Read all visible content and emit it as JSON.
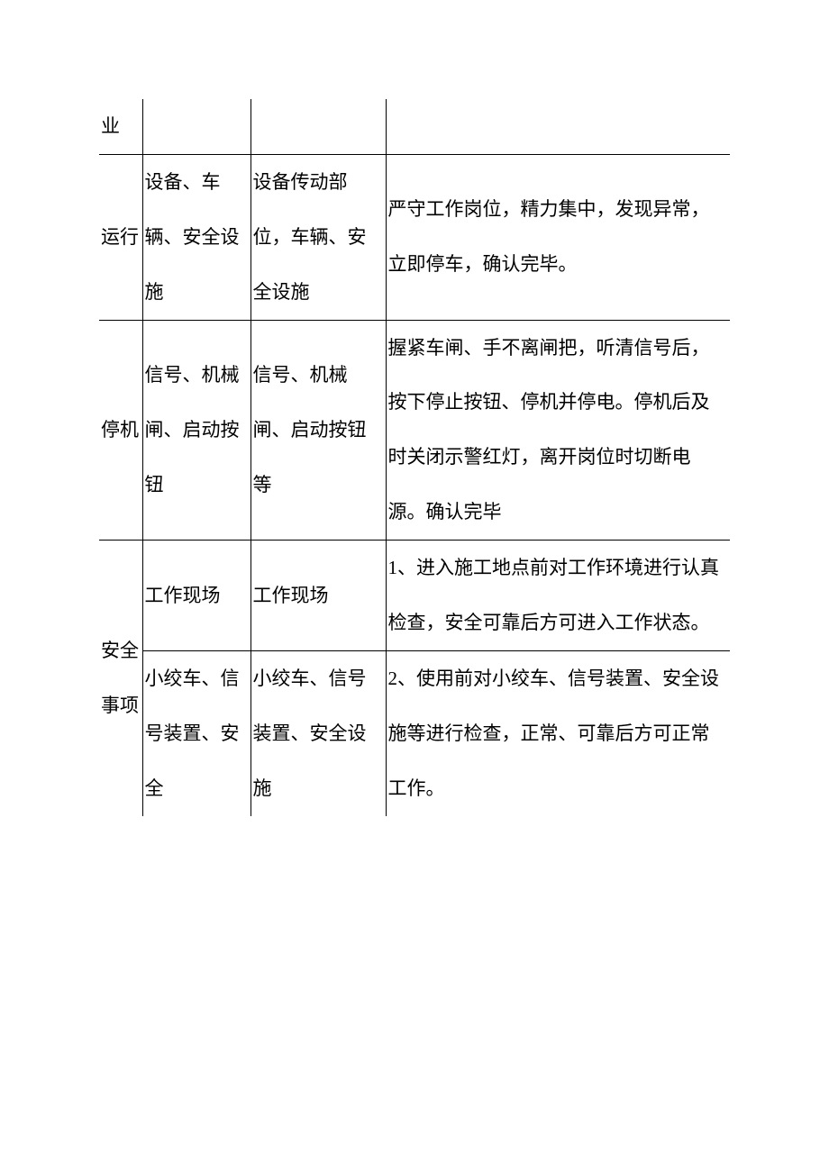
{
  "table": {
    "colors": {
      "border": "#000000",
      "text": "#000000",
      "background": "#ffffff"
    },
    "font_size_pt": 16,
    "line_height": 2.9,
    "rows": [
      {
        "c1": "业",
        "c2": "",
        "c3": "",
        "c4": ""
      },
      {
        "c1": "运行",
        "c2": "设备、车辆、安全设施",
        "c3": "设备传动部位，车辆、安全设施",
        "c4": "严守工作岗位，精力集中，发现异常，立即停车，确认完毕。"
      },
      {
        "c1": "停机",
        "c2": "信号、机械闸、启动按钮",
        "c3": "信号、机械闸、启动按钮等",
        "c4": "握紧车闸、手不离闸把，听清信号后，按下停止按钮、停机并停电。停机后及时关闭示警红灯，离开岗位时切断电源。确认完毕"
      },
      {
        "c1": "安全事项",
        "sub": [
          {
            "c2": "工作现场",
            "c3": "工作现场",
            "c4": "1、进入施工地点前对工作环境进行认真检查，安全可靠后方可进入工作状态。"
          },
          {
            "c2": "小绞车、信号装置、安全",
            "c3": "小绞车、信号装置、安全设施",
            "c4": "2、使用前对小绞车、信号装置、安全设施等进行检查，正常、可靠后方可正常工作。"
          }
        ]
      }
    ]
  }
}
